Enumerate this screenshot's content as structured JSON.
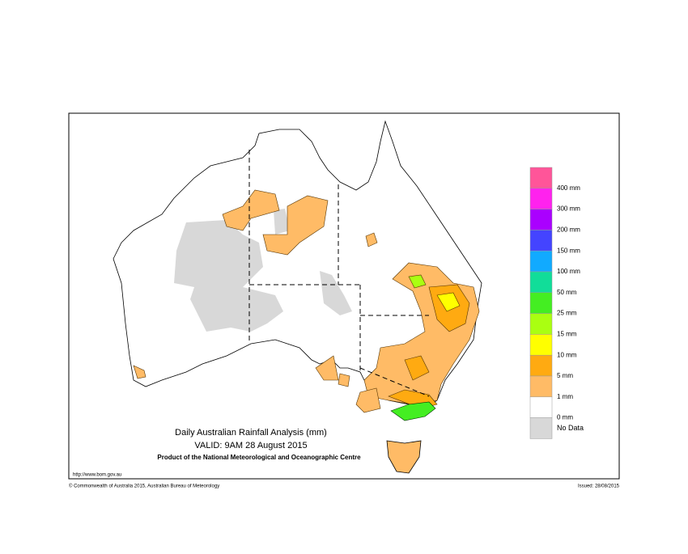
{
  "title": "Daily Australian Rainfall Analysis (mm)",
  "valid": "VALID: 9AM 28 August 2015",
  "product": "Product of the National Meteorological and Oceanographic Centre",
  "url": "http://www.bom.gov.au",
  "copyright": "© Commonwealth of Australia 2015, Australian Bureau of Meteorology",
  "issued": "Issued: 28/08/2015",
  "legend": {
    "colors": [
      "#ff5599",
      "#ff22ee",
      "#aa00ff",
      "#4444ff",
      "#11aaff",
      "#11dd99",
      "#44ee22",
      "#aaff11",
      "#ffff00",
      "#ffaa11",
      "#ffbb66",
      "#ffffff",
      "#d8d8d8"
    ],
    "labels": [
      "400 mm",
      "300 mm",
      "200 mm",
      "150 mm",
      "100 mm",
      "50 mm",
      "25 mm",
      "15 mm",
      "10 mm",
      "5 mm",
      "1 mm",
      "0 mm",
      "No Data"
    ]
  }
}
